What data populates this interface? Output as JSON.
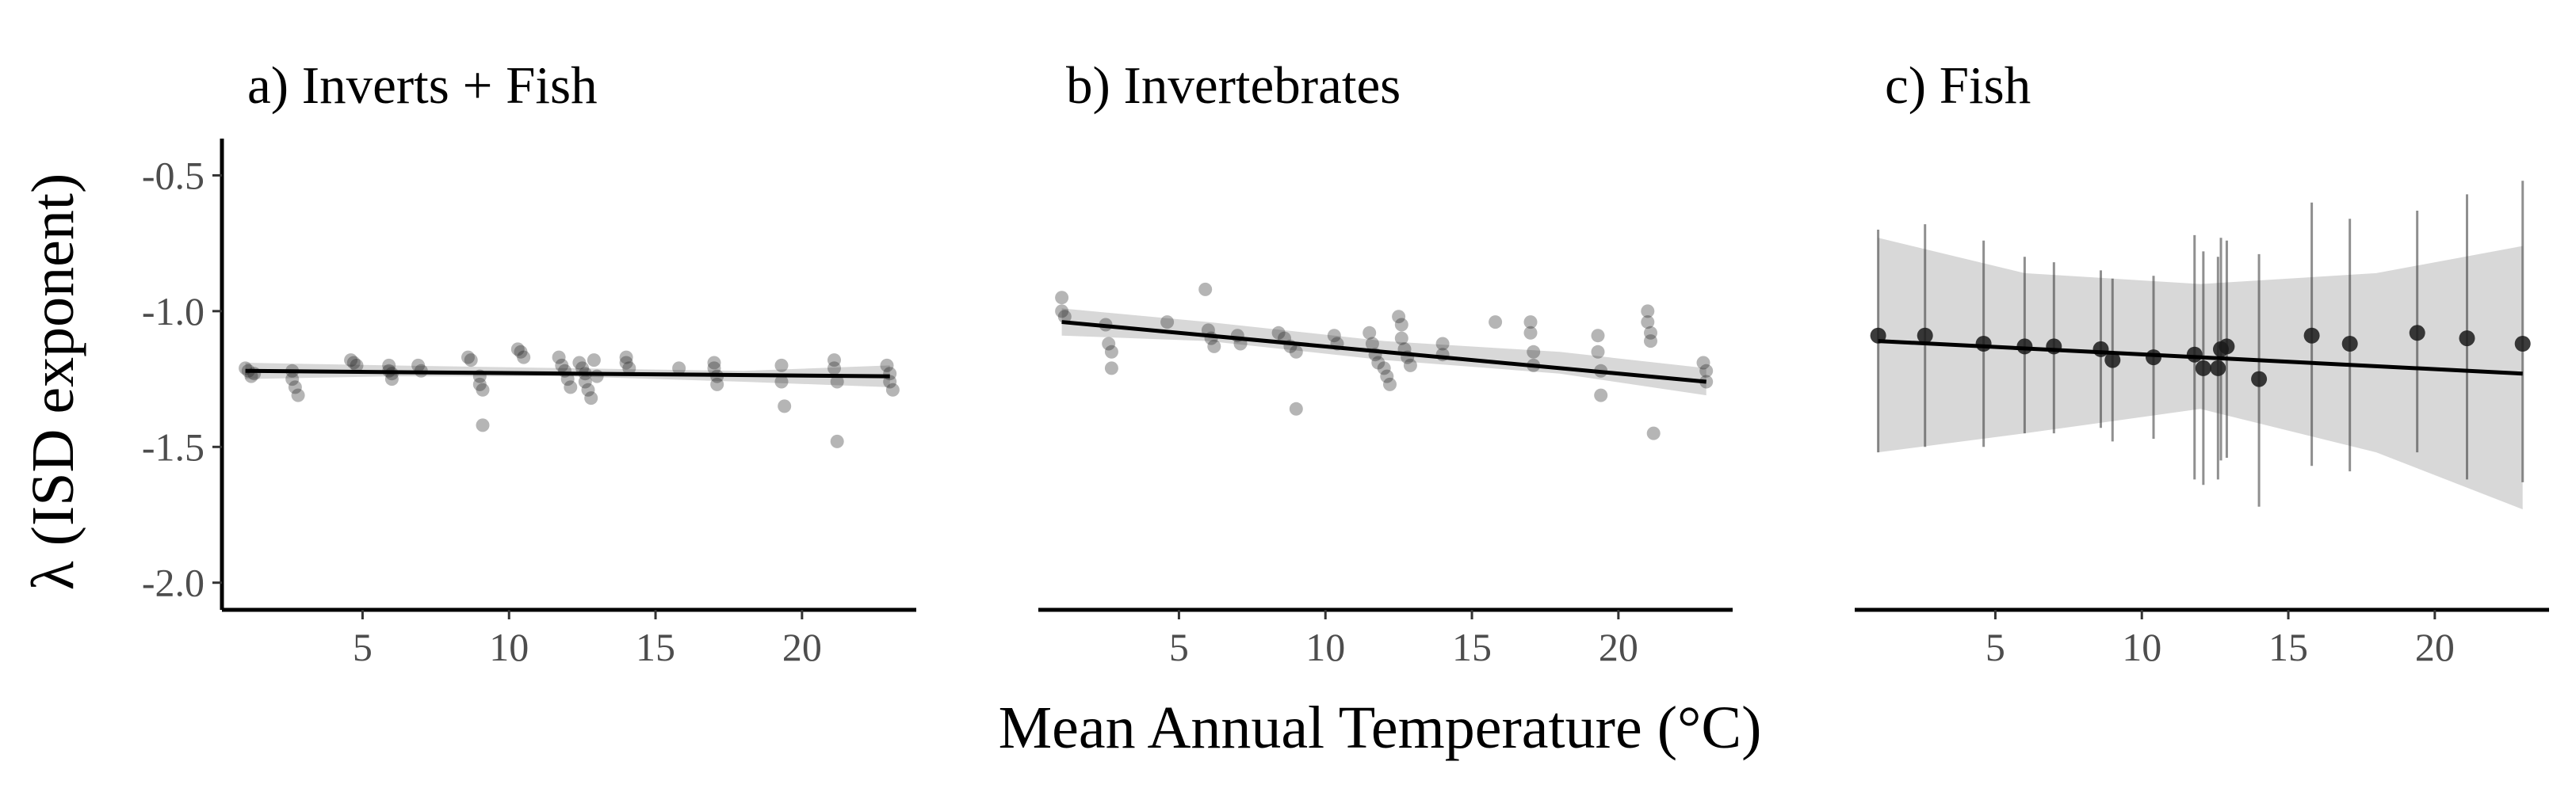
{
  "chart_data": {
    "type": "scatter",
    "xlabel": "Mean Annual Temperature (°C)",
    "ylabel": "λ (ISD exponent)",
    "shared_y_axis": true,
    "xlim": [
      0.2,
      23.9
    ],
    "ylim": [
      -2.1,
      -0.35
    ],
    "x_ticks": [
      5,
      10,
      15,
      20
    ],
    "y_ticks": [
      -0.5,
      -1.0,
      -1.5,
      -2.0
    ],
    "y_tick_labels": [
      "-0.5",
      "-1.0",
      "-1.5",
      "-2.0"
    ],
    "grid": false,
    "panels": [
      {
        "title": "a) Inverts + Fish",
        "fit_line": {
          "x": [
            1,
            23
          ],
          "y": [
            -1.22,
            -1.24
          ]
        },
        "ci_band": {
          "x": [
            1,
            6,
            12,
            18,
            23
          ],
          "lower": [
            -1.25,
            -1.24,
            -1.24,
            -1.26,
            -1.28
          ],
          "upper": [
            -1.19,
            -1.2,
            -1.21,
            -1.22,
            -1.2
          ]
        },
        "points": [
          {
            "x": 1.0,
            "y": -1.21
          },
          {
            "x": 1.1,
            "y": -1.22
          },
          {
            "x": 1.2,
            "y": -1.24
          },
          {
            "x": 1.3,
            "y": -1.23
          },
          {
            "x": 2.6,
            "y": -1.22
          },
          {
            "x": 2.6,
            "y": -1.25
          },
          {
            "x": 2.7,
            "y": -1.28
          },
          {
            "x": 2.8,
            "y": -1.31
          },
          {
            "x": 4.6,
            "y": -1.18
          },
          {
            "x": 4.7,
            "y": -1.19
          },
          {
            "x": 4.8,
            "y": -1.2
          },
          {
            "x": 5.9,
            "y": -1.2
          },
          {
            "x": 5.9,
            "y": -1.22
          },
          {
            "x": 6.0,
            "y": -1.23
          },
          {
            "x": 6.0,
            "y": -1.25
          },
          {
            "x": 6.9,
            "y": -1.2
          },
          {
            "x": 7.0,
            "y": -1.22
          },
          {
            "x": 8.6,
            "y": -1.17
          },
          {
            "x": 8.7,
            "y": -1.18
          },
          {
            "x": 9.0,
            "y": -1.24
          },
          {
            "x": 9.0,
            "y": -1.27
          },
          {
            "x": 9.1,
            "y": -1.29
          },
          {
            "x": 9.1,
            "y": -1.42
          },
          {
            "x": 10.3,
            "y": -1.14
          },
          {
            "x": 10.4,
            "y": -1.15
          },
          {
            "x": 10.5,
            "y": -1.17
          },
          {
            "x": 11.7,
            "y": -1.17
          },
          {
            "x": 11.8,
            "y": -1.2
          },
          {
            "x": 11.9,
            "y": -1.22
          },
          {
            "x": 12.0,
            "y": -1.25
          },
          {
            "x": 12.1,
            "y": -1.28
          },
          {
            "x": 12.4,
            "y": -1.19
          },
          {
            "x": 12.5,
            "y": -1.21
          },
          {
            "x": 12.6,
            "y": -1.23
          },
          {
            "x": 12.6,
            "y": -1.26
          },
          {
            "x": 12.7,
            "y": -1.29
          },
          {
            "x": 12.8,
            "y": -1.32
          },
          {
            "x": 12.9,
            "y": -1.18
          },
          {
            "x": 13.0,
            "y": -1.24
          },
          {
            "x": 14.0,
            "y": -1.17
          },
          {
            "x": 14.0,
            "y": -1.19
          },
          {
            "x": 14.1,
            "y": -1.21
          },
          {
            "x": 15.8,
            "y": -1.21
          },
          {
            "x": 17.0,
            "y": -1.19
          },
          {
            "x": 17.0,
            "y": -1.21
          },
          {
            "x": 17.1,
            "y": -1.24
          },
          {
            "x": 17.1,
            "y": -1.27
          },
          {
            "x": 19.3,
            "y": -1.2
          },
          {
            "x": 19.3,
            "y": -1.26
          },
          {
            "x": 19.4,
            "y": -1.35
          },
          {
            "x": 21.1,
            "y": -1.18
          },
          {
            "x": 21.1,
            "y": -1.21
          },
          {
            "x": 21.2,
            "y": -1.26
          },
          {
            "x": 21.2,
            "y": -1.48
          },
          {
            "x": 22.9,
            "y": -1.2
          },
          {
            "x": 23.0,
            "y": -1.23
          },
          {
            "x": 23.0,
            "y": -1.26
          },
          {
            "x": 23.1,
            "y": -1.29
          }
        ]
      },
      {
        "title": "b) Invertebrates",
        "fit_line": {
          "x": [
            1,
            23
          ],
          "y": [
            -1.04,
            -1.26
          ]
        },
        "ci_band": {
          "x": [
            1,
            6,
            12,
            18,
            23
          ],
          "lower": [
            -1.09,
            -1.11,
            -1.18,
            -1.23,
            -1.31
          ],
          "upper": [
            -0.99,
            -1.04,
            -1.11,
            -1.15,
            -1.21
          ]
        },
        "points": [
          {
            "x": 1.0,
            "y": -0.95
          },
          {
            "x": 1.0,
            "y": -1.0
          },
          {
            "x": 1.1,
            "y": -1.02
          },
          {
            "x": 2.5,
            "y": -1.05
          },
          {
            "x": 2.6,
            "y": -1.12
          },
          {
            "x": 2.7,
            "y": -1.15
          },
          {
            "x": 2.7,
            "y": -1.21
          },
          {
            "x": 4.6,
            "y": -1.04
          },
          {
            "x": 5.9,
            "y": -0.92
          },
          {
            "x": 6.0,
            "y": -1.07
          },
          {
            "x": 6.1,
            "y": -1.1
          },
          {
            "x": 6.2,
            "y": -1.13
          },
          {
            "x": 7.0,
            "y": -1.09
          },
          {
            "x": 7.1,
            "y": -1.12
          },
          {
            "x": 8.4,
            "y": -1.08
          },
          {
            "x": 8.6,
            "y": -1.1
          },
          {
            "x": 8.8,
            "y": -1.13
          },
          {
            "x": 9.0,
            "y": -1.15
          },
          {
            "x": 9.0,
            "y": -1.36
          },
          {
            "x": 10.3,
            "y": -1.09
          },
          {
            "x": 10.4,
            "y": -1.12
          },
          {
            "x": 11.5,
            "y": -1.08
          },
          {
            "x": 11.6,
            "y": -1.12
          },
          {
            "x": 11.7,
            "y": -1.16
          },
          {
            "x": 11.8,
            "y": -1.19
          },
          {
            "x": 12.0,
            "y": -1.21
          },
          {
            "x": 12.1,
            "y": -1.24
          },
          {
            "x": 12.2,
            "y": -1.27
          },
          {
            "x": 12.5,
            "y": -1.02
          },
          {
            "x": 12.6,
            "y": -1.05
          },
          {
            "x": 12.6,
            "y": -1.1
          },
          {
            "x": 12.7,
            "y": -1.14
          },
          {
            "x": 12.8,
            "y": -1.17
          },
          {
            "x": 12.9,
            "y": -1.2
          },
          {
            "x": 14.0,
            "y": -1.12
          },
          {
            "x": 14.0,
            "y": -1.16
          },
          {
            "x": 15.8,
            "y": -1.04
          },
          {
            "x": 17.0,
            "y": -1.04
          },
          {
            "x": 17.0,
            "y": -1.08
          },
          {
            "x": 17.1,
            "y": -1.15
          },
          {
            "x": 17.1,
            "y": -1.2
          },
          {
            "x": 19.3,
            "y": -1.09
          },
          {
            "x": 19.3,
            "y": -1.15
          },
          {
            "x": 19.4,
            "y": -1.22
          },
          {
            "x": 19.4,
            "y": -1.31
          },
          {
            "x": 21.0,
            "y": -1.0
          },
          {
            "x": 21.0,
            "y": -1.04
          },
          {
            "x": 21.1,
            "y": -1.08
          },
          {
            "x": 21.1,
            "y": -1.11
          },
          {
            "x": 21.2,
            "y": -1.45
          },
          {
            "x": 22.9,
            "y": -1.19
          },
          {
            "x": 23.0,
            "y": -1.22
          },
          {
            "x": 23.0,
            "y": -1.26
          }
        ]
      },
      {
        "title": "c) Fish",
        "fit_line": {
          "x": [
            1,
            23
          ],
          "y": [
            -1.11,
            -1.23
          ]
        },
        "ci_band": {
          "x": [
            1,
            6,
            12,
            18,
            23
          ],
          "lower": [
            -1.52,
            -1.45,
            -1.36,
            -1.52,
            -1.73
          ],
          "upper": [
            -0.73,
            -0.86,
            -0.9,
            -0.86,
            -0.76
          ]
        },
        "points": [
          {
            "x": 1.0,
            "y": -1.09,
            "lo": -1.52,
            "hi": -0.7
          },
          {
            "x": 2.6,
            "y": -1.09,
            "lo": -1.5,
            "hi": -0.68
          },
          {
            "x": 4.6,
            "y": -1.12,
            "lo": -1.5,
            "hi": -0.74
          },
          {
            "x": 6.0,
            "y": -1.13,
            "lo": -1.45,
            "hi": -0.8
          },
          {
            "x": 7.0,
            "y": -1.13,
            "lo": -1.45,
            "hi": -0.82
          },
          {
            "x": 8.6,
            "y": -1.14,
            "lo": -1.43,
            "hi": -0.85
          },
          {
            "x": 9.0,
            "y": -1.18,
            "lo": -1.48,
            "hi": -0.88
          },
          {
            "x": 10.4,
            "y": -1.17,
            "lo": -1.47,
            "hi": -0.87
          },
          {
            "x": 11.8,
            "y": -1.16,
            "lo": -1.62,
            "hi": -0.72
          },
          {
            "x": 12.1,
            "y": -1.21,
            "lo": -1.64,
            "hi": -0.78
          },
          {
            "x": 12.6,
            "y": -1.21,
            "lo": -1.62,
            "hi": -0.8
          },
          {
            "x": 12.7,
            "y": -1.14,
            "lo": -1.55,
            "hi": -0.73
          },
          {
            "x": 12.9,
            "y": -1.13,
            "lo": -1.54,
            "hi": -0.74
          },
          {
            "x": 14.0,
            "y": -1.25,
            "lo": -1.72,
            "hi": -0.79
          },
          {
            "x": 15.8,
            "y": -1.09,
            "lo": -1.57,
            "hi": -0.6
          },
          {
            "x": 17.1,
            "y": -1.12,
            "lo": -1.59,
            "hi": -0.66
          },
          {
            "x": 19.4,
            "y": -1.08,
            "lo": -1.52,
            "hi": -0.63
          },
          {
            "x": 21.1,
            "y": -1.1,
            "lo": -1.62,
            "hi": -0.57
          },
          {
            "x": 23.0,
            "y": -1.12,
            "lo": -1.63,
            "hi": -0.52
          }
        ]
      }
    ]
  }
}
